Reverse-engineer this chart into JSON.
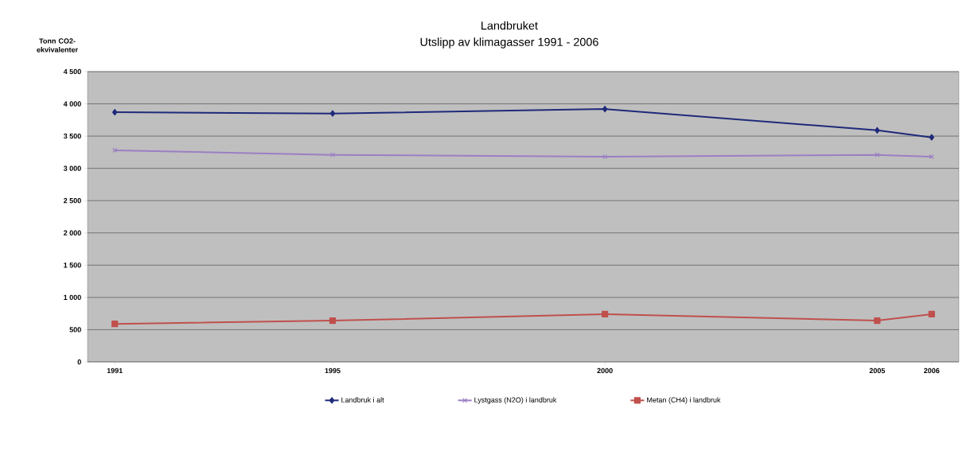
{
  "chart_data": {
    "type": "line",
    "title": "Landbruket",
    "subtitle": "Utslipp av klimagasser 1991 - 2006",
    "ylabel": "Tonn CO2-ekvivalenter",
    "x": [
      1991,
      1995,
      2000,
      2005,
      2006
    ],
    "series": [
      {
        "name": "Landbruk i alt",
        "color": "#1f2a7a",
        "marker": "diamond",
        "values": [
          3870,
          3850,
          3920,
          3590,
          3480
        ]
      },
      {
        "name": "Lystgass (N2O) i landbruk",
        "color": "#9b7fc4",
        "marker": "cross",
        "values": [
          3280,
          3210,
          3180,
          3210,
          3180
        ]
      },
      {
        "name": "Metan (CH4) i landbruk",
        "color": "#c0504d",
        "marker": "square",
        "values": [
          590,
          640,
          740,
          640,
          740
        ]
      }
    ],
    "xlim": [
      1990.5,
      2006.5
    ],
    "xticks": [
      1991,
      1995,
      2000,
      2005,
      2006
    ],
    "ylim": [
      0,
      4500
    ],
    "yticks": [
      {
        "value": 0,
        "label": "0"
      },
      {
        "value": 500,
        "label": "500"
      },
      {
        "value": 1000,
        "label": "1 000"
      },
      {
        "value": 1500,
        "label": "1 500"
      },
      {
        "value": 2000,
        "label": "2 000"
      },
      {
        "value": 2500,
        "label": "2 500"
      },
      {
        "value": 3000,
        "label": "3 000"
      },
      {
        "value": 3500,
        "label": "3 500"
      },
      {
        "value": 4000,
        "label": "4 000"
      },
      {
        "value": 4500,
        "label": "4 500"
      }
    ],
    "grid": "y",
    "legend": "bottom",
    "line_style": "solid"
  }
}
